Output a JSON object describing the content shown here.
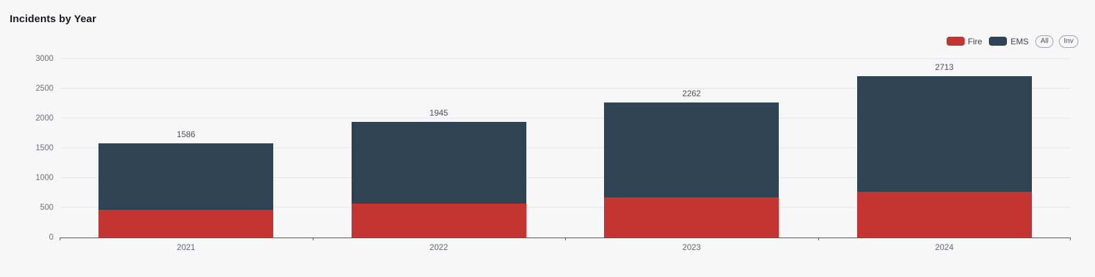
{
  "page": {
    "background": "#f7f7f8"
  },
  "header": {
    "title": "Incidents by Year"
  },
  "legend": {
    "items": [
      {
        "label": "Fire",
        "color": "#c43531"
      },
      {
        "label": "EMS",
        "color": "#2e4454"
      }
    ],
    "buttons": [
      {
        "label": "All"
      },
      {
        "label": "Inv"
      }
    ]
  },
  "chart_data": {
    "type": "bar",
    "stacked": true,
    "title": "Incidents by Year",
    "xlabel": "",
    "ylabel": "",
    "categories": [
      "2021",
      "2022",
      "2023",
      "2024"
    ],
    "series": [
      {
        "name": "Fire",
        "color": "#c43531",
        "values": [
          470,
          575,
          670,
          765
        ]
      },
      {
        "name": "EMS",
        "color": "#2e4454",
        "values": [
          1116,
          1370,
          1592,
          1948
        ]
      }
    ],
    "totals": [
      1586,
      1945,
      2262,
      2713
    ],
    "total_labels": [
      "1586",
      "1945",
      "2262",
      "2713"
    ],
    "ylim": [
      0,
      3000
    ],
    "yticks": [
      0,
      500,
      1000,
      1500,
      2000,
      2500,
      3000
    ],
    "grid": "horizontal",
    "legend_position": "top-right",
    "colors": {
      "background": "#f7f7f8",
      "gridline": "#e6e6ea",
      "axis": "#55555c",
      "tick_label": "#6e6e76",
      "total_label": "#4f4f57"
    }
  }
}
